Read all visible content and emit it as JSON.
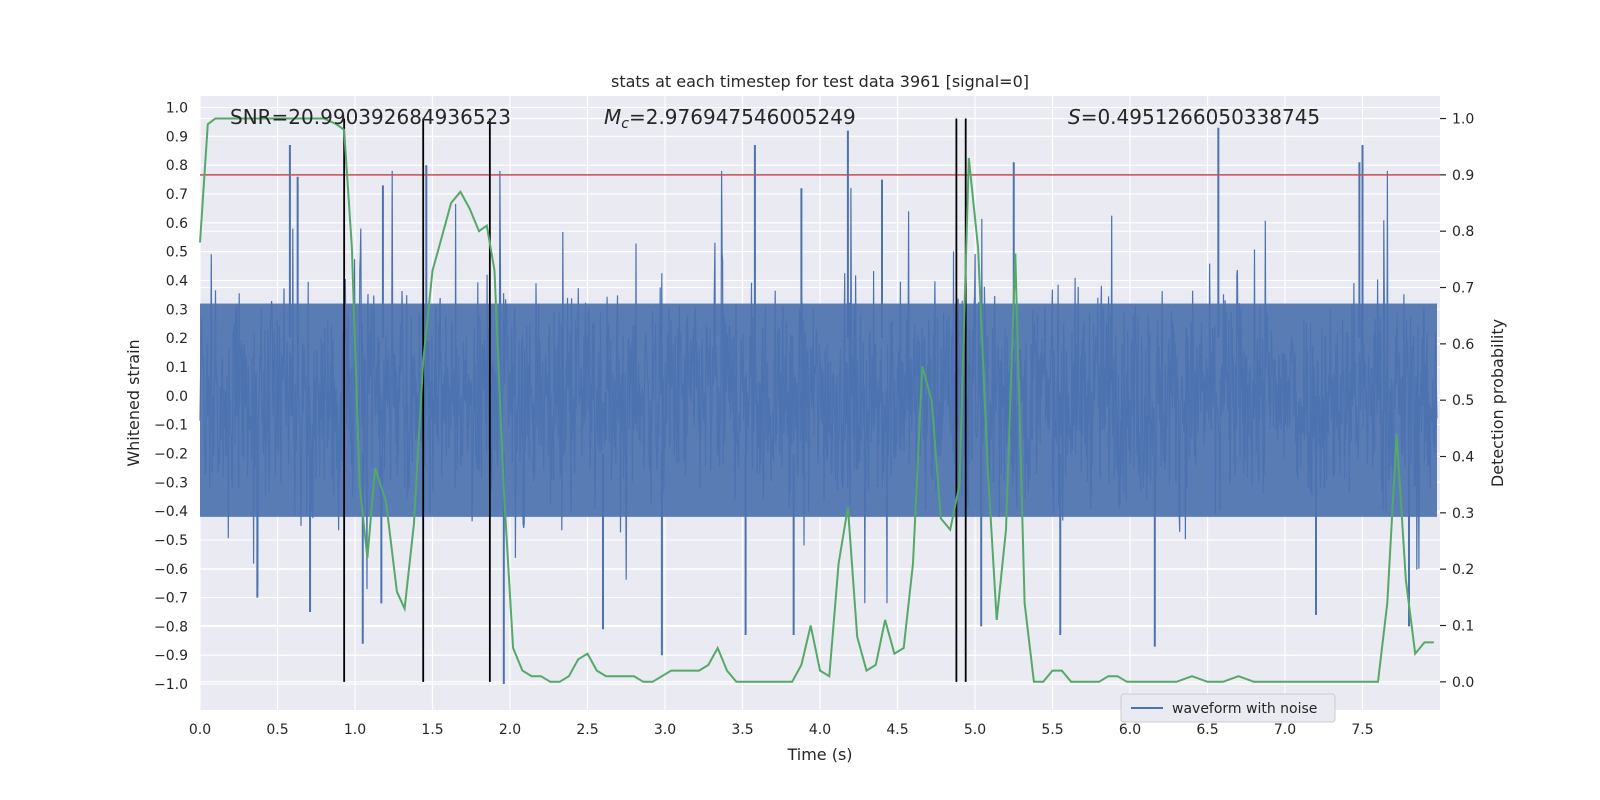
{
  "chart_data": {
    "type": "line",
    "title": "stats at each timestep for test data 3961 [signal=0]",
    "xlabel": "Time (s)",
    "ylabel_left": "Whitened strain",
    "ylabel_right": "Detection probability",
    "xlim": [
      0.0,
      8.0
    ],
    "ylim_left": [
      -1.09,
      1.04
    ],
    "ylim_right": [
      -0.05,
      1.04
    ],
    "grid": true,
    "x_ticks": [
      "0.0",
      "0.5",
      "1.0",
      "1.5",
      "2.0",
      "2.5",
      "3.0",
      "3.5",
      "4.0",
      "4.5",
      "5.0",
      "5.5",
      "6.0",
      "6.5",
      "7.0",
      "7.5"
    ],
    "x_tick_values": [
      0.0,
      0.5,
      1.0,
      1.5,
      2.0,
      2.5,
      3.0,
      3.5,
      4.0,
      4.5,
      5.0,
      5.5,
      6.0,
      6.5,
      7.0,
      7.5
    ],
    "y_left_ticks": [
      "1.0",
      "0.9",
      "0.8",
      "0.7",
      "0.6",
      "0.5",
      "0.4",
      "0.3",
      "0.2",
      "0.1",
      "0.0",
      "−0.1",
      "−0.2",
      "−0.3",
      "−0.4",
      "−0.5",
      "−0.6",
      "−0.7",
      "−0.8",
      "−0.9",
      "−1.0"
    ],
    "y_left_tick_values": [
      1.0,
      0.9,
      0.8,
      0.7,
      0.6,
      0.5,
      0.4,
      0.3,
      0.2,
      0.1,
      0.0,
      -0.1,
      -0.2,
      -0.3,
      -0.4,
      -0.5,
      -0.6,
      -0.7,
      -0.8,
      -0.9,
      -1.0
    ],
    "y_right_ticks": [
      "1.0",
      "0.9",
      "0.8",
      "0.7",
      "0.6",
      "0.5",
      "0.4",
      "0.3",
      "0.2",
      "0.1",
      "0.0"
    ],
    "y_right_tick_values": [
      1.0,
      0.9,
      0.8,
      0.7,
      0.6,
      0.5,
      0.4,
      0.3,
      0.2,
      0.1,
      0.0
    ],
    "annotations": {
      "snr": "SNR=20.990392684936523",
      "mc_symbol": "M",
      "mc_subscript": "c",
      "mc_value": "=2.976947546005249",
      "s_symbol": "S",
      "s_value": "=0.4951266050338745"
    },
    "threshold": {
      "value": 0.9,
      "axis": "right",
      "color": "#c44e52"
    },
    "vertical_lines": [
      0.93,
      1.44,
      1.87,
      4.88,
      4.94
    ],
    "waveform": {
      "name": "waveform with noise",
      "color": "#4c72b0",
      "description": "noisy whitened strain, ~0.5 typical amplitude with spikes up to 0.9 / down to -1.0",
      "envelope_upper_typical": 0.32,
      "envelope_lower_typical": -0.42,
      "spike_peaks": [
        {
          "x": 0.58,
          "y": 0.87
        },
        {
          "x": 0.63,
          "y": 0.76
        },
        {
          "x": 1.18,
          "y": 0.73
        },
        {
          "x": 1.46,
          "y": 0.8
        },
        {
          "x": 3.88,
          "y": 0.72
        },
        {
          "x": 3.58,
          "y": 0.87
        },
        {
          "x": 4.18,
          "y": 0.92
        },
        {
          "x": 4.4,
          "y": 0.75
        },
        {
          "x": 5.25,
          "y": 0.81
        },
        {
          "x": 6.57,
          "y": 0.93
        },
        {
          "x": 7.48,
          "y": 0.81
        },
        {
          "x": 7.5,
          "y": 0.87
        },
        {
          "x": 0.37,
          "y": -0.7
        },
        {
          "x": 0.71,
          "y": -0.75
        },
        {
          "x": 1.05,
          "y": -0.86
        },
        {
          "x": 1.17,
          "y": -0.72
        },
        {
          "x": 1.96,
          "y": -1.0
        },
        {
          "x": 2.6,
          "y": -0.81
        },
        {
          "x": 2.98,
          "y": -0.9
        },
        {
          "x": 3.52,
          "y": -0.83
        },
        {
          "x": 3.83,
          "y": -0.83
        },
        {
          "x": 5.04,
          "y": -0.8
        },
        {
          "x": 5.55,
          "y": -0.83
        },
        {
          "x": 6.16,
          "y": -0.87
        },
        {
          "x": 7.2,
          "y": -0.76
        },
        {
          "x": 7.8,
          "y": -0.8
        }
      ]
    },
    "series": [
      {
        "name": "detection probability",
        "axis": "right",
        "color": "#55a868",
        "x": [
          0.0,
          0.05,
          0.1,
          0.15,
          0.2,
          0.3,
          0.4,
          0.5,
          0.6,
          0.7,
          0.8,
          0.88,
          0.93,
          0.98,
          1.03,
          1.08,
          1.13,
          1.2,
          1.27,
          1.32,
          1.38,
          1.44,
          1.5,
          1.55,
          1.62,
          1.68,
          1.74,
          1.8,
          1.85,
          1.9,
          1.96,
          2.02,
          2.08,
          2.14,
          2.2,
          2.26,
          2.32,
          2.38,
          2.44,
          2.5,
          2.56,
          2.62,
          2.68,
          2.74,
          2.8,
          2.86,
          2.92,
          2.98,
          3.04,
          3.1,
          3.16,
          3.22,
          3.28,
          3.34,
          3.4,
          3.46,
          3.52,
          3.58,
          3.64,
          3.7,
          3.76,
          3.82,
          3.88,
          3.94,
          4.0,
          4.06,
          4.12,
          4.18,
          4.24,
          4.3,
          4.36,
          4.42,
          4.48,
          4.54,
          4.6,
          4.66,
          4.72,
          4.78,
          4.84,
          4.9,
          4.96,
          5.02,
          5.08,
          5.14,
          5.2,
          5.26,
          5.32,
          5.38,
          5.44,
          5.5,
          5.56,
          5.62,
          5.68,
          5.74,
          5.8,
          5.86,
          5.92,
          5.98,
          6.04,
          6.1,
          6.2,
          6.3,
          6.4,
          6.5,
          6.6,
          6.7,
          6.8,
          6.9,
          7.0,
          7.1,
          7.2,
          7.3,
          7.4,
          7.5,
          7.6,
          7.66,
          7.72,
          7.78,
          7.84,
          7.9,
          7.96
        ],
        "y": [
          0.78,
          0.99,
          1.0,
          1.0,
          1.0,
          1.0,
          1.0,
          1.0,
          1.0,
          1.0,
          1.0,
          0.99,
          0.98,
          0.77,
          0.35,
          0.22,
          0.38,
          0.32,
          0.16,
          0.13,
          0.28,
          0.57,
          0.73,
          0.78,
          0.85,
          0.87,
          0.84,
          0.8,
          0.81,
          0.73,
          0.34,
          0.06,
          0.02,
          0.01,
          0.01,
          0.0,
          0.0,
          0.01,
          0.04,
          0.05,
          0.02,
          0.01,
          0.01,
          0.01,
          0.01,
          0.0,
          0.0,
          0.01,
          0.02,
          0.02,
          0.02,
          0.02,
          0.03,
          0.06,
          0.02,
          0.0,
          0.0,
          0.0,
          0.0,
          0.0,
          0.0,
          0.0,
          0.03,
          0.1,
          0.02,
          0.01,
          0.21,
          0.31,
          0.08,
          0.02,
          0.03,
          0.11,
          0.05,
          0.06,
          0.21,
          0.56,
          0.5,
          0.29,
          0.27,
          0.35,
          0.93,
          0.77,
          0.39,
          0.11,
          0.27,
          0.76,
          0.14,
          0.0,
          0.0,
          0.02,
          0.02,
          0.0,
          0.0,
          0.0,
          0.0,
          0.01,
          0.01,
          0.0,
          0.0,
          0.0,
          0.0,
          0.0,
          0.01,
          0.0,
          0.0,
          0.01,
          0.0,
          0.0,
          0.0,
          0.0,
          0.0,
          0.0,
          0.0,
          0.0,
          0.0,
          0.14,
          0.44,
          0.18,
          0.05,
          0.07,
          0.07
        ]
      }
    ],
    "legend": {
      "placement": "bottom-right",
      "entries": [
        "waveform with noise"
      ]
    }
  }
}
